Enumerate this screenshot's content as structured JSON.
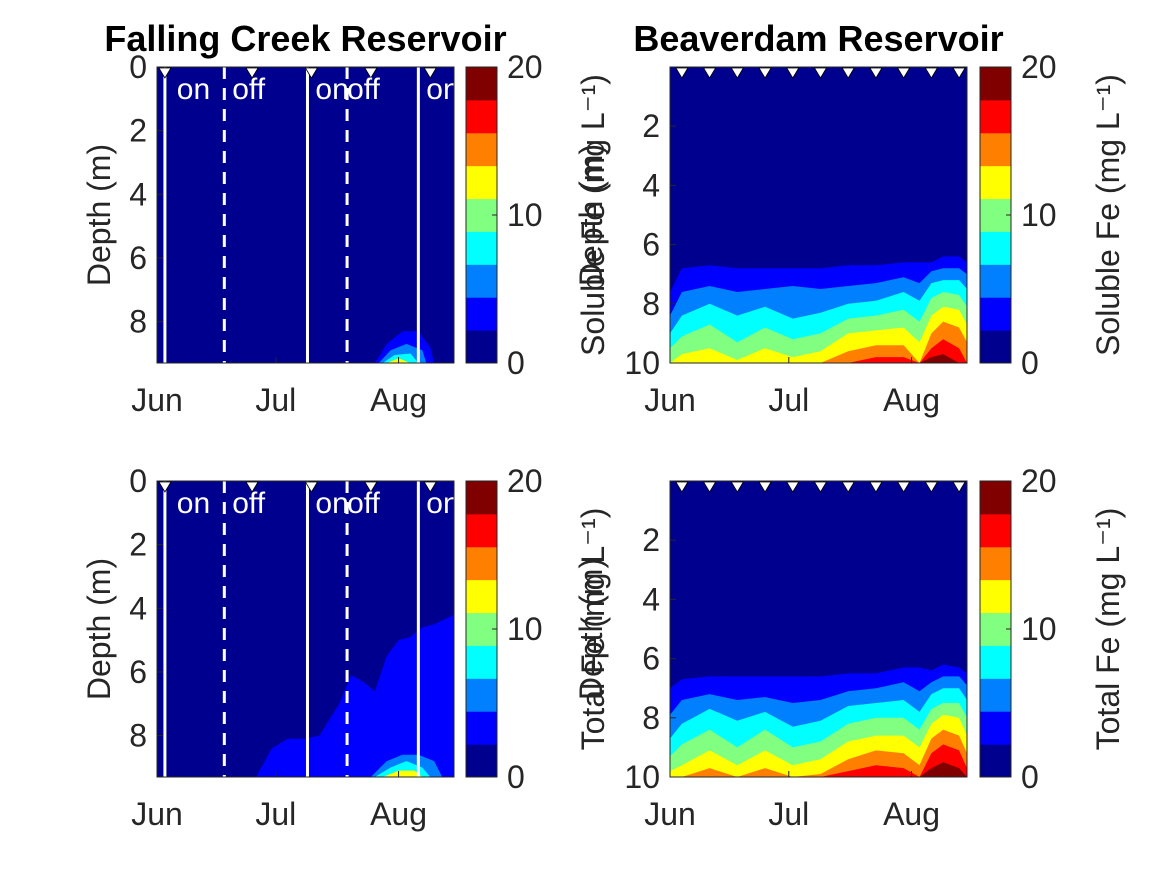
{
  "colormap": [
    "#00008f",
    "#0000ff",
    "#0080ff",
    "#00ffff",
    "#80ff80",
    "#ffff00",
    "#ff8000",
    "#ff0000",
    "#800000"
  ],
  "background_color": "#00008f",
  "chart_data": [
    {
      "type": "heatmap",
      "title": "Falling Creek Reservoir",
      "xlabel": "",
      "ylabel": "Depth (m)",
      "colorbar_label": "Soluble Fe (mg L⁻¹)",
      "xticks": [
        "Jun",
        "Jul",
        "Aug"
      ],
      "yticks": [
        0,
        2,
        4,
        6,
        8
      ],
      "colorbar_ticks": [
        0,
        10,
        20
      ],
      "clim": [
        0,
        20
      ],
      "y_range": [
        0,
        9.3
      ],
      "x_range_days": [
        0,
        75
      ],
      "sample_days": [
        2,
        24,
        39,
        54,
        69
      ],
      "solid_lines": [
        2,
        38,
        66
      ],
      "dashed_lines": [
        17,
        48
      ],
      "oxygenation_labels": [
        {
          "day": 5,
          "text": "on"
        },
        {
          "day": 19,
          "text": "off"
        },
        {
          "day": 40,
          "text": "on"
        },
        {
          "day": 48,
          "text": "off"
        },
        {
          "day": 68,
          "text": "on"
        }
      ],
      "patches": [
        {
          "days": [
            55,
            58,
            62,
            66,
            69,
            70,
            64,
            55
          ],
          "depths": [
            9.3,
            8.7,
            8.3,
            8.3,
            8.8,
            9.3,
            9.3,
            9.3
          ],
          "level": 1
        },
        {
          "days": [
            56,
            59,
            63,
            67,
            68,
            56
          ],
          "depths": [
            9.3,
            8.9,
            8.7,
            8.9,
            9.3,
            9.3
          ],
          "level": 2
        },
        {
          "days": [
            57,
            60,
            64,
            66,
            57
          ],
          "depths": [
            9.3,
            9.05,
            9.0,
            9.3,
            9.3
          ],
          "level": 3
        },
        {
          "days": [
            58,
            61,
            64,
            58
          ],
          "depths": [
            9.3,
            9.15,
            9.3,
            9.3
          ],
          "level": 5
        }
      ]
    },
    {
      "type": "heatmap",
      "title": "Beaverdam Reservoir",
      "xlabel": "",
      "ylabel": "Depth (m)",
      "colorbar_label": "Soluble Fe (mg L⁻¹)",
      "xticks": [
        "Jun",
        "Jul",
        "Aug"
      ],
      "yticks": [
        2,
        4,
        6,
        8,
        10
      ],
      "colorbar_ticks": [
        0,
        10,
        20
      ],
      "clim": [
        0,
        20
      ],
      "y_range": [
        0,
        10
      ],
      "x_range_days": [
        0,
        75
      ],
      "sample_days": [
        3,
        10,
        17,
        24,
        31,
        38,
        45,
        52,
        59,
        66,
        73
      ],
      "solid_lines": [],
      "dashed_lines": [],
      "oxygenation_labels": [],
      "profile_days": [
        0,
        3,
        10,
        17,
        24,
        31,
        38,
        45,
        52,
        59,
        63,
        66,
        69,
        73,
        75
      ],
      "contour_depths": [
        [
          7.6,
          6.8,
          6.7,
          6.8,
          6.8,
          6.8,
          6.8,
          6.7,
          6.7,
          6.6,
          6.6,
          6.6,
          6.4,
          6.4,
          6.6
        ],
        [
          8.4,
          7.6,
          7.4,
          7.6,
          7.5,
          7.4,
          7.5,
          7.4,
          7.3,
          7.1,
          7.3,
          6.9,
          6.8,
          6.8,
          7.0
        ],
        [
          9.0,
          8.4,
          8.0,
          8.4,
          8.1,
          8.5,
          8.3,
          8.0,
          7.9,
          7.6,
          7.9,
          7.3,
          7.2,
          7.2,
          7.5
        ],
        [
          9.5,
          9.1,
          8.7,
          9.3,
          8.8,
          9.2,
          9.0,
          8.5,
          8.4,
          8.2,
          8.6,
          7.8,
          7.6,
          7.7,
          8.1
        ],
        [
          10.0,
          9.7,
          9.5,
          9.9,
          9.5,
          9.8,
          9.6,
          9.0,
          8.9,
          8.8,
          9.3,
          8.4,
          8.1,
          8.2,
          8.7
        ],
        [
          10.0,
          10.0,
          10.0,
          10.0,
          10.0,
          10.0,
          10.0,
          9.6,
          9.4,
          9.4,
          10.0,
          9.0,
          8.6,
          8.8,
          9.3
        ],
        [
          10.0,
          10.0,
          10.0,
          10.0,
          10.0,
          10.0,
          10.0,
          10.0,
          9.8,
          9.8,
          10.0,
          9.5,
          9.2,
          9.5,
          10.0
        ],
        [
          10.0,
          10.0,
          10.0,
          10.0,
          10.0,
          10.0,
          10.0,
          10.0,
          10.0,
          10.0,
          10.0,
          9.8,
          9.7,
          10.0,
          10.0
        ]
      ]
    },
    {
      "type": "heatmap",
      "title": "",
      "xlabel": "",
      "ylabel": "Depth (m)",
      "colorbar_label": "Total Fe (mg L⁻¹)",
      "xticks": [
        "Jun",
        "Jul",
        "Aug"
      ],
      "yticks": [
        0,
        2,
        4,
        6,
        8
      ],
      "colorbar_ticks": [
        0,
        10,
        20
      ],
      "clim": [
        0,
        20
      ],
      "y_range": [
        0,
        9.3
      ],
      "x_range_days": [
        0,
        75
      ],
      "sample_days": [
        2,
        24,
        39,
        54,
        69
      ],
      "solid_lines": [
        2,
        38,
        66
      ],
      "dashed_lines": [
        17,
        48
      ],
      "oxygenation_labels": [
        {
          "day": 5,
          "text": "on"
        },
        {
          "day": 19,
          "text": "off"
        },
        {
          "day": 40,
          "text": "on"
        },
        {
          "day": 48,
          "text": "off"
        },
        {
          "day": 68,
          "text": "on"
        }
      ],
      "patches": [
        {
          "days": [
            25,
            29,
            33,
            37,
            41,
            46,
            49,
            52,
            55,
            58,
            61,
            64,
            67,
            70,
            75,
            75,
            25
          ],
          "depths": [
            9.3,
            8.4,
            8.1,
            8.1,
            8.0,
            7.0,
            6.1,
            6.3,
            6.6,
            5.5,
            5.0,
            4.9,
            4.6,
            4.5,
            4.2,
            9.3,
            9.3
          ],
          "level": 1
        },
        {
          "days": [
            54,
            58,
            62,
            66,
            70,
            72,
            54
          ],
          "depths": [
            9.3,
            8.8,
            8.6,
            8.6,
            8.8,
            9.3,
            9.3
          ],
          "level": 2
        },
        {
          "days": [
            55,
            59,
            63,
            67,
            69,
            55
          ],
          "depths": [
            9.3,
            9.0,
            8.8,
            9.0,
            9.3,
            9.3
          ],
          "level": 3
        },
        {
          "days": [
            57,
            61,
            65,
            67,
            57
          ],
          "depths": [
            9.3,
            9.1,
            9.1,
            9.3,
            9.3
          ],
          "level": 5
        }
      ]
    },
    {
      "type": "heatmap",
      "title": "",
      "xlabel": "",
      "ylabel": "Depth (m)",
      "colorbar_label": "Total Fe (mg L⁻¹)",
      "xticks": [
        "Jun",
        "Jul",
        "Aug"
      ],
      "yticks": [
        2,
        4,
        6,
        8,
        10
      ],
      "colorbar_ticks": [
        0,
        10,
        20
      ],
      "clim": [
        0,
        20
      ],
      "y_range": [
        0,
        10
      ],
      "x_range_days": [
        0,
        75
      ],
      "sample_days": [
        3,
        10,
        17,
        24,
        31,
        38,
        45,
        52,
        59,
        66,
        73
      ],
      "solid_lines": [],
      "dashed_lines": [],
      "oxygenation_labels": [],
      "profile_days": [
        0,
        3,
        10,
        17,
        24,
        31,
        38,
        45,
        52,
        59,
        63,
        66,
        69,
        73,
        75
      ],
      "contour_depths": [
        [
          7.0,
          6.7,
          6.6,
          6.6,
          6.6,
          6.6,
          6.6,
          6.5,
          6.5,
          6.3,
          6.3,
          6.4,
          6.2,
          6.3,
          6.5
        ],
        [
          7.9,
          7.4,
          7.2,
          7.4,
          7.3,
          7.5,
          7.4,
          7.1,
          7.0,
          6.8,
          7.1,
          6.8,
          6.6,
          6.6,
          6.9
        ],
        [
          8.7,
          8.2,
          7.7,
          8.1,
          7.8,
          8.3,
          8.1,
          7.6,
          7.5,
          7.4,
          7.8,
          7.2,
          7.0,
          7.0,
          7.4
        ],
        [
          9.3,
          8.9,
          8.4,
          9.0,
          8.4,
          9.0,
          8.8,
          8.2,
          8.0,
          8.0,
          8.4,
          7.7,
          7.5,
          7.5,
          8.0
        ],
        [
          9.8,
          9.6,
          9.1,
          9.6,
          9.1,
          9.6,
          9.4,
          8.8,
          8.6,
          8.6,
          9.0,
          8.2,
          7.9,
          8.0,
          8.6
        ],
        [
          10.0,
          10.0,
          9.7,
          10.0,
          9.7,
          10.0,
          9.9,
          9.4,
          9.1,
          9.2,
          9.6,
          8.7,
          8.4,
          8.6,
          9.2
        ],
        [
          10.0,
          10.0,
          10.0,
          10.0,
          10.0,
          10.0,
          10.0,
          9.8,
          9.6,
          9.7,
          10.0,
          9.2,
          8.9,
          9.1,
          9.7
        ],
        [
          10.0,
          10.0,
          10.0,
          10.0,
          10.0,
          10.0,
          10.0,
          10.0,
          10.0,
          10.0,
          10.0,
          9.7,
          9.5,
          9.7,
          10.0
        ]
      ]
    }
  ]
}
